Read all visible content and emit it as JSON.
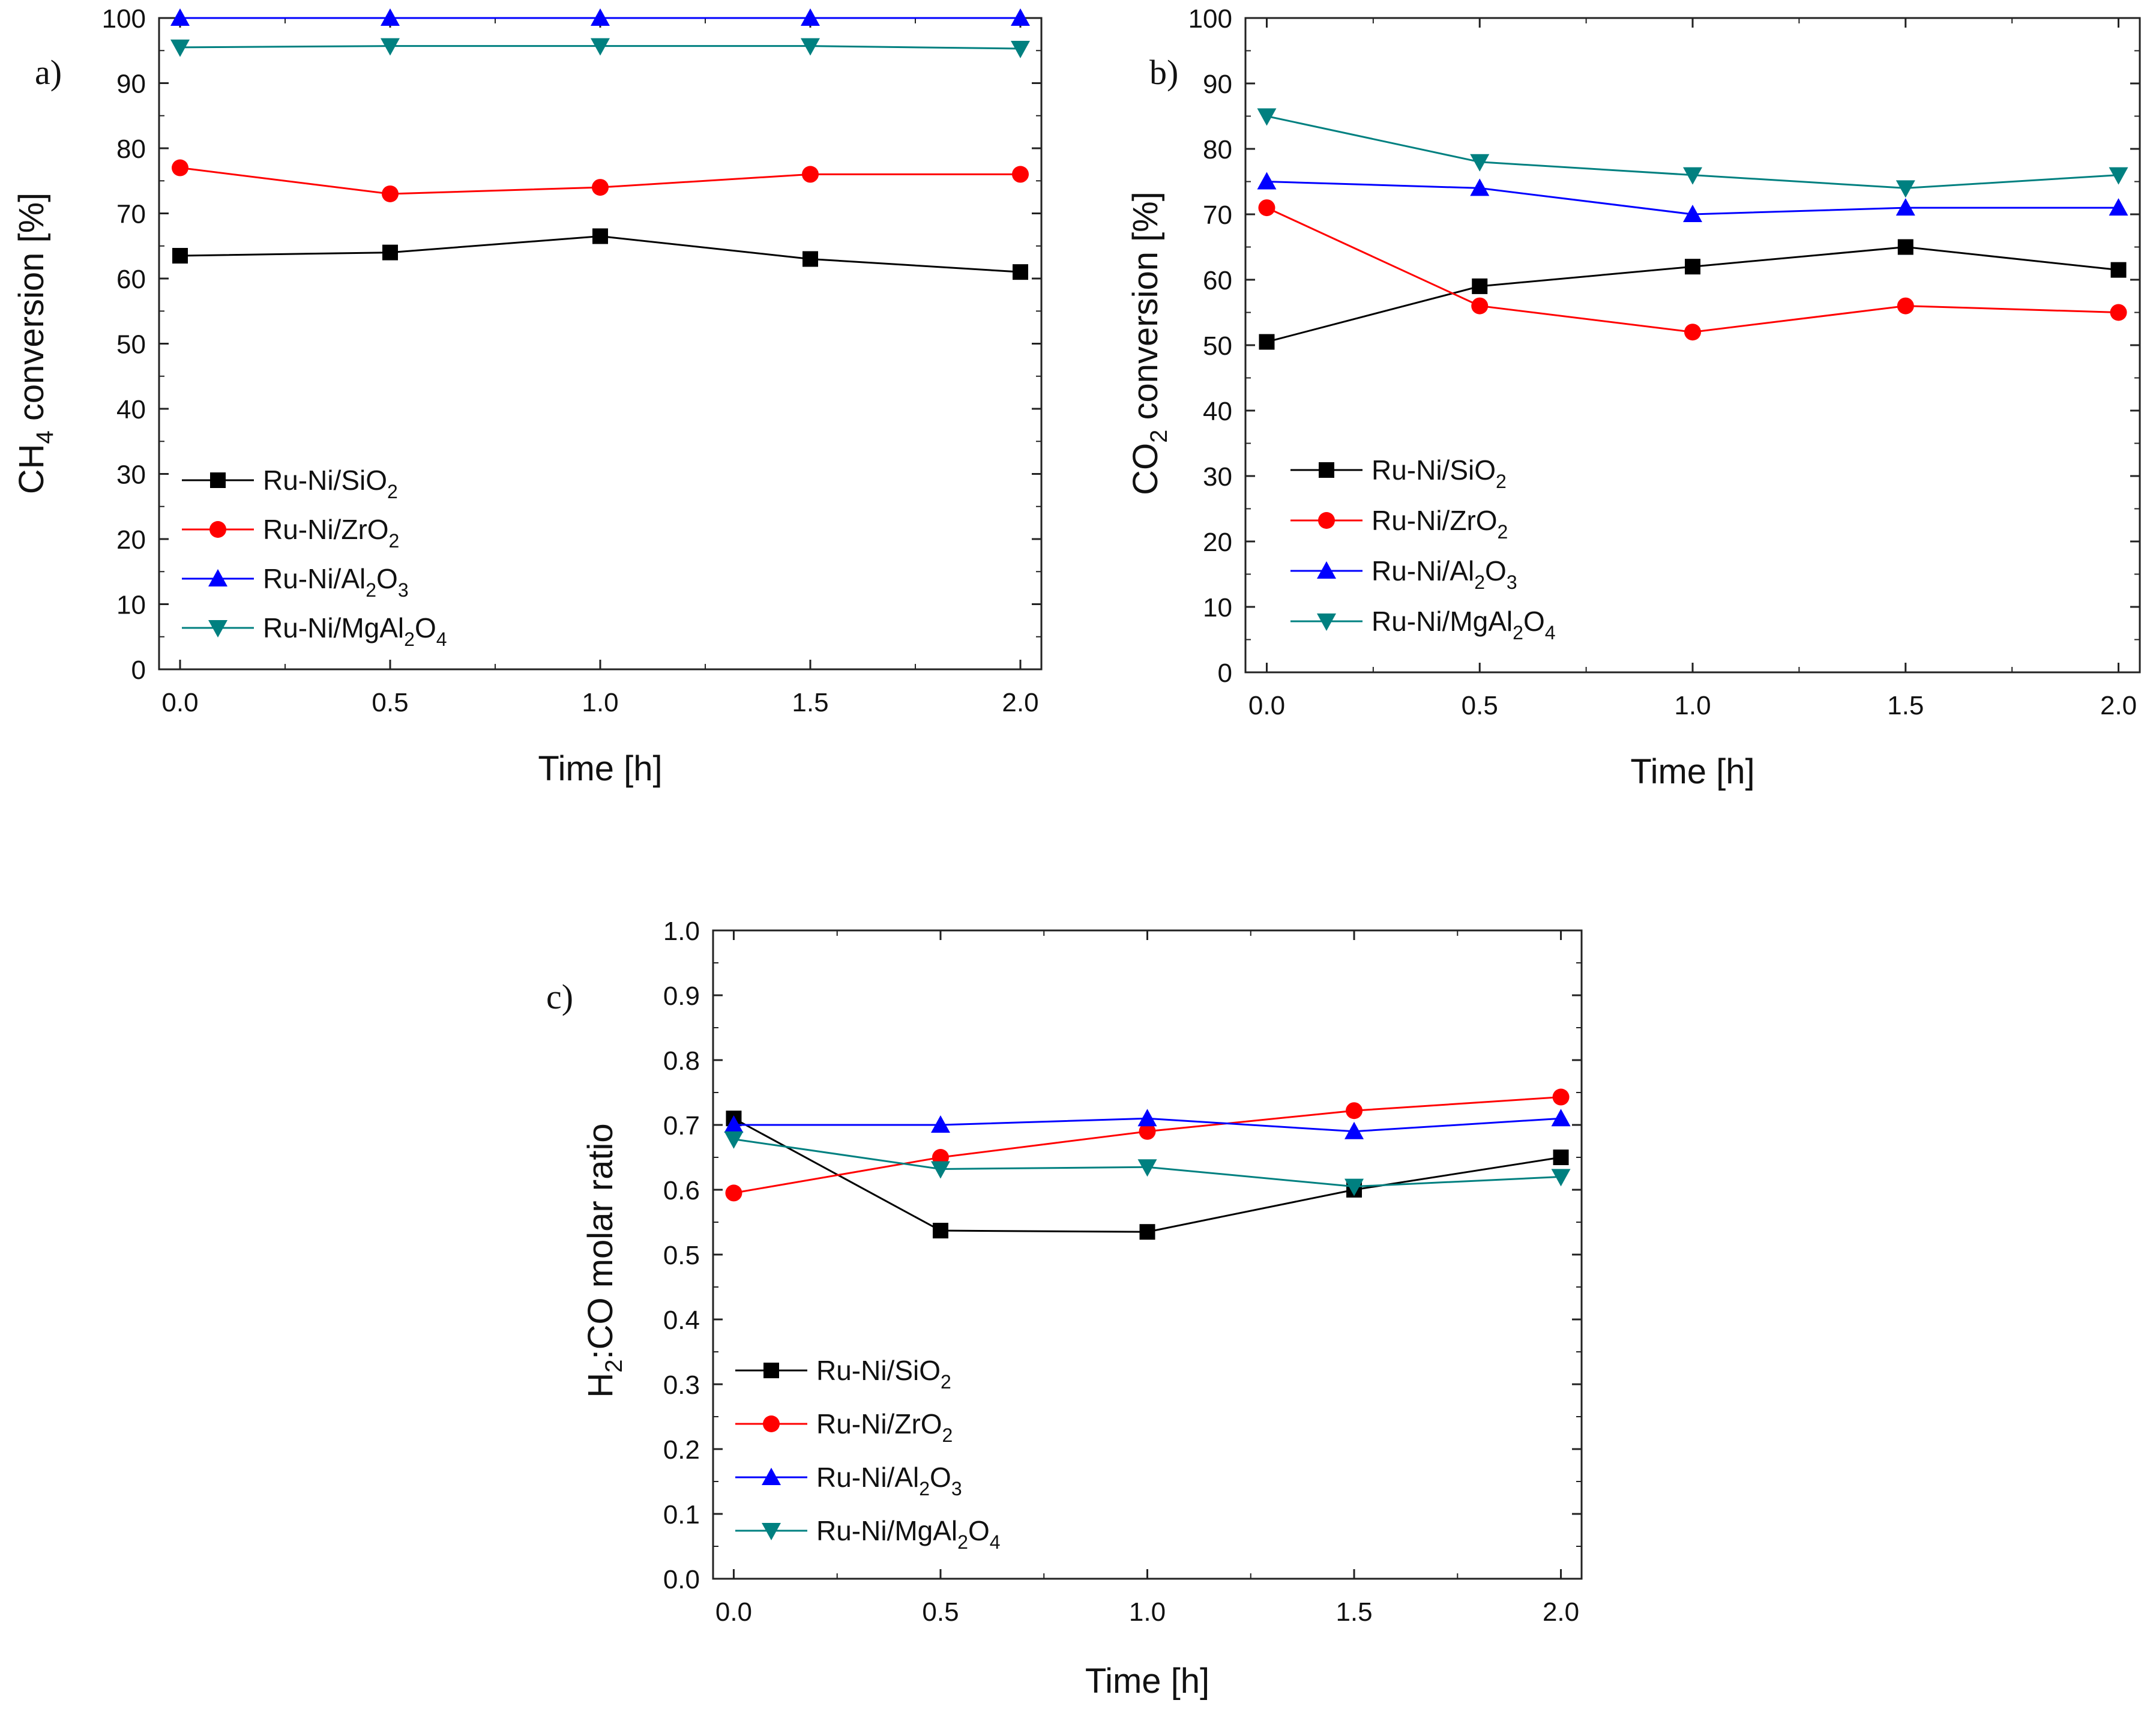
{
  "chart_data": [
    {
      "type": "line",
      "panel_label": "a)",
      "x": [
        0.0,
        0.5,
        1.0,
        1.5,
        2.0
      ],
      "xticks": [
        "0.0",
        "0.5",
        "1.0",
        "1.5",
        "2.0"
      ],
      "xlim": [
        -0.05,
        2.05
      ],
      "ylim": [
        0,
        100
      ],
      "yticks": [
        "0",
        "10",
        "20",
        "30",
        "40",
        "50",
        "60",
        "70",
        "80",
        "90",
        "100"
      ],
      "xlabel": "Time [h]",
      "ylabel": {
        "pre": "CH",
        "sub": "4",
        "post": " conversion [%]"
      },
      "grid": false,
      "legend_position": "lower-left",
      "series": [
        {
          "name": "Ru-Ni/SiO2",
          "label_parts": [
            [
              "Ru-Ni/SiO",
              ""
            ],
            [
              "2",
              "sub"
            ]
          ],
          "color": "#000000",
          "marker": "square",
          "values": [
            63.5,
            64,
            66.5,
            63,
            61
          ]
        },
        {
          "name": "Ru-Ni/ZrO2",
          "label_parts": [
            [
              "Ru-Ni/ZrO",
              ""
            ],
            [
              "2",
              "sub"
            ]
          ],
          "color": "#ff0000",
          "marker": "circle",
          "values": [
            77,
            73,
            74,
            76,
            76
          ]
        },
        {
          "name": "Ru-Ni/Al2O3",
          "label_parts": [
            [
              "Ru-Ni/Al",
              ""
            ],
            [
              "2",
              "sub"
            ],
            [
              "O",
              ""
            ],
            [
              "3",
              "sub"
            ]
          ],
          "color": "#0000ff",
          "marker": "triangle-up",
          "values": [
            100,
            100,
            100,
            100,
            100
          ]
        },
        {
          "name": "Ru-Ni/MgAl2O4",
          "label_parts": [
            [
              "Ru-Ni/MgAl",
              ""
            ],
            [
              "2",
              "sub"
            ],
            [
              "O",
              ""
            ],
            [
              "4",
              "sub"
            ]
          ],
          "color": "#008080",
          "marker": "triangle-down",
          "values": [
            95.5,
            95.7,
            95.7,
            95.7,
            95.3
          ]
        }
      ]
    },
    {
      "type": "line",
      "panel_label": "b)",
      "x": [
        0.0,
        0.5,
        1.0,
        1.5,
        2.0
      ],
      "xticks": [
        "0.0",
        "0.5",
        "1.0",
        "1.5",
        "2.0"
      ],
      "xlim": [
        -0.05,
        2.05
      ],
      "ylim": [
        0,
        100
      ],
      "yticks": [
        "0",
        "10",
        "20",
        "30",
        "40",
        "50",
        "60",
        "70",
        "80",
        "90",
        "100"
      ],
      "xlabel": "Time [h]",
      "ylabel": {
        "pre": "CO",
        "sub": "2",
        "post": " conversion [%]"
      },
      "grid": false,
      "legend_position": "lower-left",
      "series": [
        {
          "name": "Ru-Ni/SiO2",
          "label_parts": [
            [
              "Ru-Ni/SiO",
              ""
            ],
            [
              "2",
              "sub"
            ]
          ],
          "color": "#000000",
          "marker": "square",
          "values": [
            50.5,
            59,
            62,
            65,
            61.5
          ]
        },
        {
          "name": "Ru-Ni/ZrO2",
          "label_parts": [
            [
              "Ru-Ni/ZrO",
              ""
            ],
            [
              "2",
              "sub"
            ]
          ],
          "color": "#ff0000",
          "marker": "circle",
          "values": [
            71,
            56,
            52,
            56,
            55
          ]
        },
        {
          "name": "Ru-Ni/Al2O3",
          "label_parts": [
            [
              "Ru-Ni/Al",
              ""
            ],
            [
              "2",
              "sub"
            ],
            [
              "O",
              ""
            ],
            [
              "3",
              "sub"
            ]
          ],
          "color": "#0000ff",
          "marker": "triangle-up",
          "values": [
            75,
            74,
            70,
            71,
            71
          ]
        },
        {
          "name": "Ru-Ni/MgAl2O4",
          "label_parts": [
            [
              "Ru-Ni/MgAl",
              ""
            ],
            [
              "2",
              "sub"
            ],
            [
              "O",
              ""
            ],
            [
              "4",
              "sub"
            ]
          ],
          "color": "#008080",
          "marker": "triangle-down",
          "values": [
            85,
            78,
            76,
            74,
            76
          ]
        }
      ]
    },
    {
      "type": "line",
      "panel_label": "c)",
      "x": [
        0.0,
        0.5,
        1.0,
        1.5,
        2.0
      ],
      "xticks": [
        "0.0",
        "0.5",
        "1.0",
        "1.5",
        "2.0"
      ],
      "xlim": [
        -0.05,
        2.05
      ],
      "ylim": [
        0,
        1.0
      ],
      "yticks": [
        "0.0",
        "0.1",
        "0.2",
        "0.3",
        "0.4",
        "0.5",
        "0.6",
        "0.7",
        "0.8",
        "0.9",
        "1.0"
      ],
      "xlabel": "Time [h]",
      "ylabel": {
        "pre": "H",
        "sub": "2",
        "post": ":CO molar ratio"
      },
      "grid": false,
      "legend_position": "lower-left",
      "series": [
        {
          "name": "Ru-Ni/SiO2",
          "label_parts": [
            [
              "Ru-Ni/SiO",
              ""
            ],
            [
              "2",
              "sub"
            ]
          ],
          "color": "#000000",
          "marker": "square",
          "values": [
            0.71,
            0.537,
            0.535,
            0.6,
            0.65
          ]
        },
        {
          "name": "Ru-Ni/ZrO2",
          "label_parts": [
            [
              "Ru-Ni/ZrO",
              ""
            ],
            [
              "2",
              "sub"
            ]
          ],
          "color": "#ff0000",
          "marker": "circle",
          "values": [
            0.595,
            0.65,
            0.69,
            0.722,
            0.743
          ]
        },
        {
          "name": "Ru-Ni/Al2O3",
          "label_parts": [
            [
              "Ru-Ni/Al",
              ""
            ],
            [
              "2",
              "sub"
            ],
            [
              "O",
              ""
            ],
            [
              "3",
              "sub"
            ]
          ],
          "color": "#0000ff",
          "marker": "triangle-up",
          "values": [
            0.7,
            0.7,
            0.71,
            0.69,
            0.71
          ]
        },
        {
          "name": "Ru-Ni/MgAl2O4",
          "label_parts": [
            [
              "Ru-Ni/MgAl",
              ""
            ],
            [
              "2",
              "sub"
            ],
            [
              "O",
              ""
            ],
            [
              "4",
              "sub"
            ]
          ],
          "color": "#008080",
          "marker": "triangle-down",
          "values": [
            0.678,
            0.632,
            0.635,
            0.605,
            0.62
          ]
        }
      ]
    }
  ]
}
